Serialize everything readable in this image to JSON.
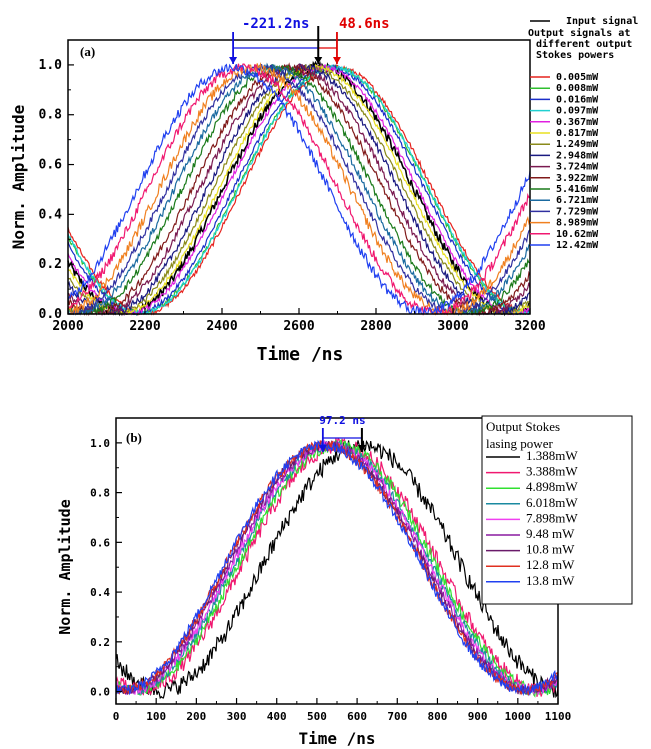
{
  "chart_data": [
    {
      "type": "line",
      "panel_label": "(a)",
      "xlabel": "Time /ns",
      "ylabel": "Norm. Amplitude",
      "xlim": [
        2000,
        3200
      ],
      "ylim": [
        0.0,
        1.1
      ],
      "xticks": [
        2000,
        2200,
        2400,
        2600,
        2800,
        3000,
        3200
      ],
      "yticks": [
        0.0,
        0.2,
        0.4,
        0.6,
        0.8,
        1.0
      ],
      "xtick_labels": [
        "2000",
        "2200",
        "2400",
        "2600",
        "2800",
        "3000",
        "3200"
      ],
      "ytick_labels": [
        "0.0",
        "0.2",
        "0.4",
        "0.6",
        "0.8",
        "1.0"
      ],
      "legend_lines": [
        "Input signal",
        "Output signals at",
        "different output",
        "Stokes powers"
      ],
      "legend_placement": "right-outside",
      "grid": false,
      "input_peak": 2650,
      "period": 1000,
      "annotations": [
        {
          "text": "-221.2ns",
          "color": "#1010e0",
          "from": 2650,
          "to": 2428.8
        },
        {
          "text": "48.6ns",
          "color": "#e00000",
          "from": 2650,
          "to": 2698.6
        }
      ],
      "series": [
        {
          "name": "Input signal",
          "color": "#000000",
          "peak": 2650,
          "noise": 0.02,
          "is_input": true
        },
        {
          "name": "0.005mW",
          "color": "#e6231e",
          "peak": 2698.6,
          "noise": 0.01
        },
        {
          "name": "0.008mW",
          "color": "#2fbf2f",
          "peak": 2688,
          "noise": 0.01
        },
        {
          "name": "0.016mW",
          "color": "#1a2ec9",
          "peak": 2678,
          "noise": 0.01
        },
        {
          "name": "0.097mW",
          "color": "#20d0d0",
          "peak": 2690,
          "noise": 0.01
        },
        {
          "name": "0.367mW",
          "color": "#e020e0",
          "peak": 2660,
          "noise": 0.01
        },
        {
          "name": "0.817mW",
          "color": "#e8e020",
          "peak": 2640,
          "noise": 0.01
        },
        {
          "name": "1.249mW",
          "color": "#8a8a1a",
          "peak": 2625,
          "noise": 0.01
        },
        {
          "name": "2.948mW",
          "color": "#1a1a80",
          "peak": 2610,
          "noise": 0.015
        },
        {
          "name": "3.724mW",
          "color": "#7a1a50",
          "peak": 2590,
          "noise": 0.015
        },
        {
          "name": "3.922mW",
          "color": "#801a1a",
          "peak": 2570,
          "noise": 0.015
        },
        {
          "name": "5.416mW",
          "color": "#1a7a1a",
          "peak": 2545,
          "noise": 0.015
        },
        {
          "name": "6.721mW",
          "color": "#1a6aa0",
          "peak": 2525,
          "noise": 0.015
        },
        {
          "name": "7.729mW",
          "color": "#3030a0",
          "peak": 2505,
          "noise": 0.015
        },
        {
          "name": "8.989mW",
          "color": "#f08020",
          "peak": 2485,
          "noise": 0.02
        },
        {
          "name": "10.62mW",
          "color": "#f01870",
          "peak": 2455,
          "noise": 0.02
        },
        {
          "name": "12.42mW",
          "color": "#2040f0",
          "peak": 2428.8,
          "noise": 0.02
        }
      ]
    },
    {
      "type": "line",
      "panel_label": "(b)",
      "xlabel": "Time /ns",
      "ylabel": "Norm. Amplitude",
      "xlim": [
        0,
        1100
      ],
      "ylim": [
        -0.05,
        1.1
      ],
      "xticks": [
        0,
        100,
        200,
        300,
        400,
        500,
        600,
        700,
        800,
        900,
        1000,
        1100
      ],
      "yticks": [
        0.0,
        0.2,
        0.4,
        0.6,
        0.8,
        1.0
      ],
      "xtick_labels": [
        "0",
        "100",
        "200",
        "300",
        "400",
        "500",
        "600",
        "700",
        "800",
        "900",
        "1000",
        "1100"
      ],
      "ytick_labels": [
        "0.0",
        "0.2",
        "0.4",
        "0.6",
        "0.8",
        "1.0"
      ],
      "legend_lines": [
        "Output Stokes",
        "lasing power"
      ],
      "legend_placement": "top-right",
      "grid": false,
      "period": 1000,
      "annotations": [
        {
          "text": "97.2 ns",
          "color": "#1010e0",
          "from": 612,
          "to": 514.8
        }
      ],
      "series": [
        {
          "name": "1.388mW",
          "color": "#000000",
          "peak": 612,
          "noise": 0.035
        },
        {
          "name": "3.388mW",
          "color": "#f01870",
          "peak": 560,
          "noise": 0.03
        },
        {
          "name": "4.898mW",
          "color": "#30e030",
          "peak": 550,
          "noise": 0.025
        },
        {
          "name": "6.018mW",
          "color": "#1a8aa0",
          "peak": 540,
          "noise": 0.02
        },
        {
          "name": "7.898mW",
          "color": "#f040f0",
          "peak": 535,
          "noise": 0.02
        },
        {
          "name": "9.48 mW",
          "color": "#8a1aa0",
          "peak": 528,
          "noise": 0.02
        },
        {
          "name": "10.8  mW",
          "color": "#6a1a6a",
          "peak": 522,
          "noise": 0.02
        },
        {
          "name": "12.8  mW",
          "color": "#e03020",
          "peak": 518,
          "noise": 0.02
        },
        {
          "name": "13.8  mW",
          "color": "#2040f0",
          "peak": 514.8,
          "noise": 0.02
        }
      ]
    }
  ]
}
